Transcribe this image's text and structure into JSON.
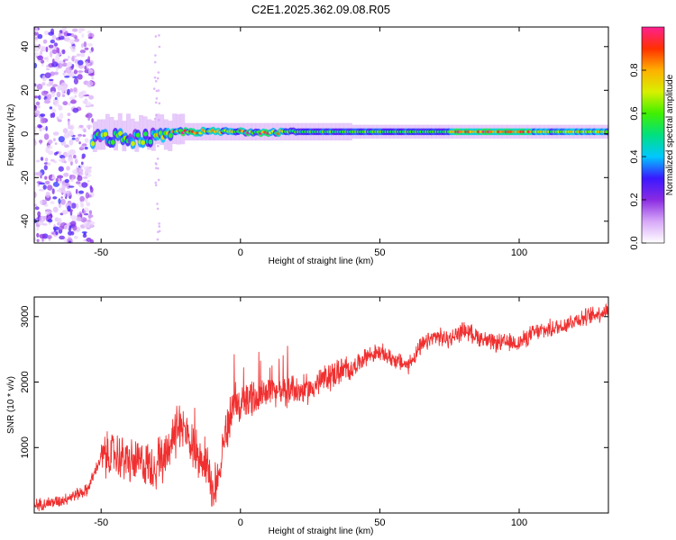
{
  "title": "C2E1.2025.362.09.08.R05",
  "chart_data": [
    {
      "type": "heatmap",
      "title": "C2E1.2025.362.09.08.R05",
      "xlabel": "Height of straight line (km)",
      "ylabel": "Frequency (Hz)",
      "xlim": [
        -74,
        132
      ],
      "ylim": [
        -50,
        49
      ],
      "xticks": [
        -50,
        0,
        50,
        100
      ],
      "yticks": [
        -40,
        -20,
        0,
        20,
        40
      ],
      "colorbar": {
        "label": "Normalized spectral amplitude",
        "range": [
          0,
          1
        ],
        "ticks": [
          0.0,
          0.2,
          0.4,
          0.6,
          0.8
        ]
      },
      "features": [
        {
          "x": [
            -74,
            -53
          ],
          "description": "broadband noise"
        },
        {
          "x": [
            -53,
            132
          ],
          "center_hz": 1
        }
      ]
    },
    {
      "type": "line",
      "xlabel": "Height of straight line (km)",
      "ylabel": "SNR (10 * v/v)",
      "xlim": [
        -74,
        132
      ],
      "ylim": [
        0,
        3300
      ],
      "xticks": [
        -50,
        0,
        50,
        100
      ],
      "yticks": [
        1000,
        2000,
        3000
      ],
      "color": "#f03030",
      "series": [
        {
          "name": "SNR",
          "x": [
            -74,
            -65,
            -55,
            -50,
            -45,
            -40,
            -35,
            -30,
            -25,
            -22,
            -19,
            -15,
            -12,
            -9,
            -6,
            -3,
            0,
            5,
            10,
            15,
            20,
            25,
            30,
            35,
            40,
            45,
            50,
            55,
            60,
            65,
            70,
            75,
            80,
            85,
            90,
            95,
            100,
            105,
            110,
            115,
            120,
            125,
            132
          ],
          "values": [
            120,
            180,
            350,
            850,
            900,
            780,
            760,
            700,
            1100,
            1300,
            1200,
            900,
            700,
            250,
            1100,
            1600,
            1650,
            1750,
            1900,
            1850,
            1850,
            1900,
            2050,
            2150,
            2200,
            2400,
            2450,
            2350,
            2250,
            2550,
            2700,
            2650,
            2800,
            2700,
            2600,
            2600,
            2600,
            2750,
            2800,
            2850,
            2950,
            3000,
            3100
          ]
        }
      ]
    }
  ]
}
